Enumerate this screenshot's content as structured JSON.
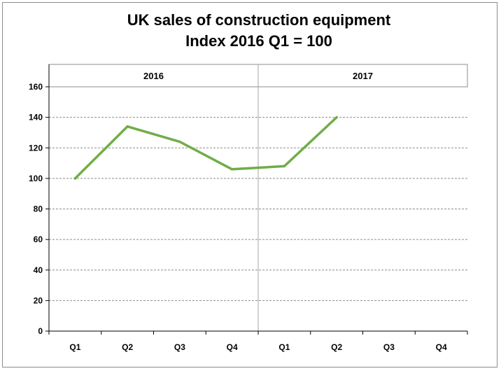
{
  "chart_data": {
    "type": "line",
    "title": "UK sales of construction equipment",
    "subtitle": "Index 2016 Q1 = 100",
    "xlabel": "",
    "ylabel": "",
    "groups": [
      {
        "label": "2016",
        "categories": [
          "Q1",
          "Q2",
          "Q3",
          "Q4"
        ]
      },
      {
        "label": "2017",
        "categories": [
          "Q1",
          "Q2",
          "Q3",
          "Q4"
        ]
      }
    ],
    "categories": [
      "Q1",
      "Q2",
      "Q3",
      "Q4",
      "Q1",
      "Q2",
      "Q3",
      "Q4"
    ],
    "series": [
      {
        "values": [
          100,
          134,
          124,
          106,
          108,
          140,
          null,
          null
        ],
        "color": "#70ad47"
      }
    ],
    "ylim": [
      0,
      160
    ],
    "yticks": [
      0,
      20,
      40,
      60,
      80,
      100,
      120,
      140,
      160
    ],
    "grid": true,
    "legend": "none"
  }
}
